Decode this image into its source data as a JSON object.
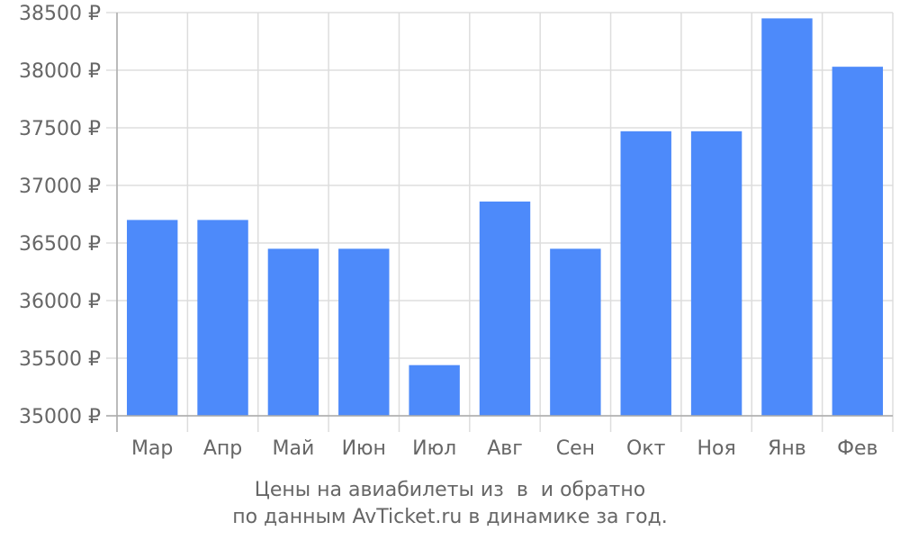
{
  "chart_data": {
    "type": "bar",
    "categories": [
      "Мар",
      "Апр",
      "Май",
      "Июн",
      "Июл",
      "Авг",
      "Сен",
      "Окт",
      "Ноя",
      "Янв",
      "Фев"
    ],
    "values": [
      36700,
      36700,
      36450,
      36450,
      35440,
      36860,
      36450,
      37470,
      37470,
      38450,
      38030
    ],
    "ylim": [
      35000,
      38500
    ],
    "yticks": [
      35000,
      35500,
      36000,
      36500,
      37000,
      37500,
      38000,
      38500
    ],
    "ytick_labels": [
      "35000 ₽",
      "35500 ₽",
      "36000 ₽",
      "36500 ₽",
      "37000 ₽",
      "37500 ₽",
      "38000 ₽",
      "38500 ₽"
    ],
    "grid": true,
    "bar_color": "#4d8afa",
    "grid_color": "#dddddd",
    "text_color": "#666666"
  },
  "caption": {
    "line1": "Цены на авиабилеты из  в  и обратно",
    "line2": "по данным AvTicket.ru в динамике за год."
  }
}
